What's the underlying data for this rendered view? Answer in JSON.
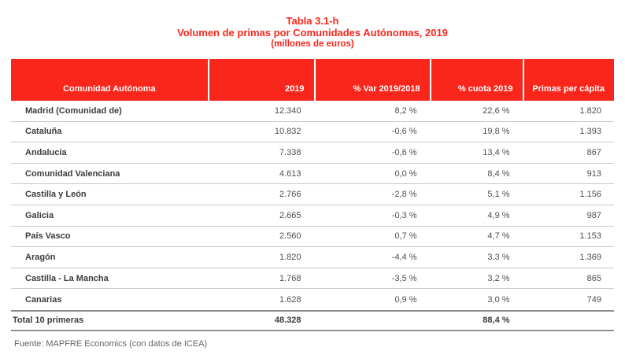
{
  "title": {
    "line1": "Tabla 3.1-h",
    "line2": "Volumen de primas por Comunidades Autónomas, 2019",
    "line3": "(millones de euros)"
  },
  "table": {
    "columns": [
      "Comunidad Autónoma",
      "2019",
      "% Var 2019/2018",
      "% cuota 2019",
      "Primas per cápita"
    ],
    "rows": [
      {
        "name": "Madrid (Comunidad de)",
        "v2019": "12.340",
        "var": "8,2 %",
        "cuota": "22,6 %",
        "per_capita": "1.820"
      },
      {
        "name": "Cataluña",
        "v2019": "10.832",
        "var": "-0,6 %",
        "cuota": "19,8 %",
        "per_capita": "1.393"
      },
      {
        "name": "Andalucía",
        "v2019": "7.338",
        "var": "-0,6 %",
        "cuota": "13,4 %",
        "per_capita": "867"
      },
      {
        "name": "Comunidad Valenciana",
        "v2019": "4.613",
        "var": "0,0 %",
        "cuota": "8,4 %",
        "per_capita": "913"
      },
      {
        "name": "Castilla y León",
        "v2019": "2.766",
        "var": "-2,8 %",
        "cuota": "5,1 %",
        "per_capita": "1.156"
      },
      {
        "name": "Galicia",
        "v2019": "2.665",
        "var": "-0,3 %",
        "cuota": "4,9 %",
        "per_capita": "987"
      },
      {
        "name": "País Vasco",
        "v2019": "2.560",
        "var": "0,7 %",
        "cuota": "4,7 %",
        "per_capita": "1.153"
      },
      {
        "name": "Aragón",
        "v2019": "1.820",
        "var": "-4,4 %",
        "cuota": "3,3 %",
        "per_capita": "1.369"
      },
      {
        "name": "Castilla - La Mancha",
        "v2019": "1.768",
        "var": "-3,5 %",
        "cuota": "3,2 %",
        "per_capita": "865"
      },
      {
        "name": "Canarias",
        "v2019": "1.628",
        "var": "0,9 %",
        "cuota": "3,0 %",
        "per_capita": "749"
      }
    ],
    "total_row": {
      "name": "Total 10 primeras",
      "v2019": "48.328",
      "var": "",
      "cuota": "88,4 %",
      "per_capita": ""
    }
  },
  "footer": {
    "source": "Fuente: MAPFRE Economics (con datos de ICEA)"
  },
  "colors": {
    "accent_red": "#F9261B",
    "row_line": "#C9C9C9",
    "total_line": "#8F8F8F",
    "label_text": "#3C3C3E",
    "value_text": "#4E4F51",
    "source_text": "#636466"
  }
}
